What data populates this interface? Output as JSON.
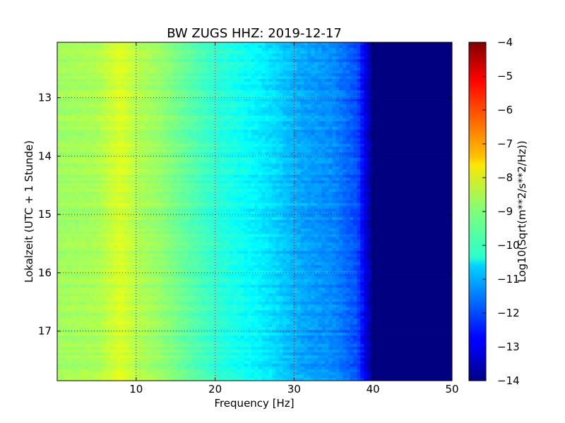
{
  "chart_data": {
    "type": "heatmap",
    "title": "BW ZUGS HHZ: 2019-12-17",
    "xlabel": "Frequency [Hz]",
    "ylabel": "Lokalzeit (UTC + 1 Stunde)",
    "xlim": [
      0,
      50
    ],
    "ylim": [
      17.85,
      12.05
    ],
    "y_axis_inverted": true,
    "x_ticks": [
      10,
      20,
      30,
      40,
      50
    ],
    "x_tick_labels": [
      "10",
      "20",
      "30",
      "40",
      "50"
    ],
    "y_ticks": [
      13,
      14,
      15,
      16,
      17
    ],
    "y_tick_labels": [
      "13",
      "14",
      "15",
      "16",
      "17"
    ],
    "grid": true,
    "grid_style": "dotted",
    "colormap": "jet",
    "colorbar": {
      "label": "Log10(Sqrt(m**2/s**2/Hz))",
      "range": [
        -14,
        -4
      ],
      "ticks": [
        -4,
        -5,
        -6,
        -7,
        -8,
        -9,
        -10,
        -11,
        -12,
        -13,
        -14
      ],
      "tick_labels": [
        "−4",
        "−5",
        "−6",
        "−7",
        "−8",
        "−9",
        "−10",
        "−11",
        "−12",
        "−13",
        "−14"
      ]
    },
    "frequency_profile": {
      "x": [
        0,
        5,
        8,
        10,
        13,
        17,
        20,
        25,
        28,
        30,
        32,
        35,
        38,
        39,
        40,
        42,
        50
      ],
      "values": [
        -8.7,
        -8.6,
        -8.1,
        -8.5,
        -8.8,
        -9.4,
        -9.8,
        -10.3,
        -10.7,
        -11.0,
        -11.2,
        -11.4,
        -12.0,
        -13.0,
        -14.0,
        -14.0,
        -14.0
      ]
    }
  }
}
